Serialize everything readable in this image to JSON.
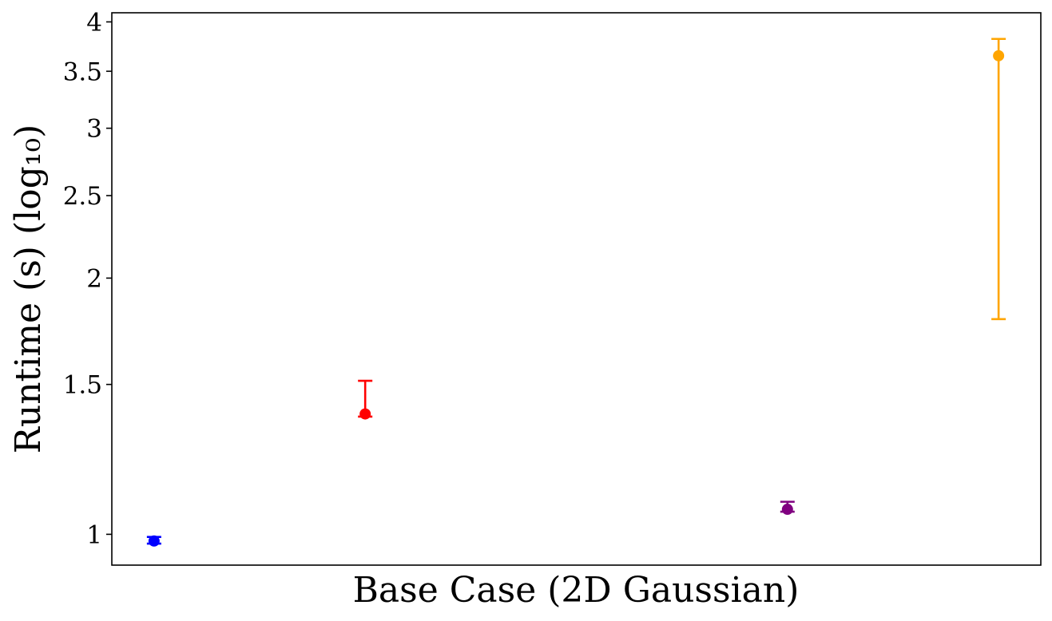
{
  "chart_data": {
    "type": "scatter",
    "xlabel": "Base Case (2D Gaussian)",
    "ylabel": "Runtime (s) (log₁₀)",
    "yscale": "log",
    "ylim": [
      0.92,
      4.1
    ],
    "xlim": [
      -0.2,
      4.2
    ],
    "grid": false,
    "yticks": [
      {
        "value": 1,
        "label": "1"
      },
      {
        "value": 1.5,
        "label": "1.5"
      },
      {
        "value": 2,
        "label": "2"
      },
      {
        "value": 2.5,
        "label": "2.5"
      },
      {
        "value": 3,
        "label": "3"
      },
      {
        "value": 3.5,
        "label": "3.5"
      },
      {
        "value": 4,
        "label": "4"
      }
    ],
    "series": [
      {
        "x": 0,
        "y": 0.982,
        "err_low": 0.975,
        "err_high": 0.993,
        "color": "#0000ff"
      },
      {
        "x": 1,
        "y": 1.385,
        "err_low": 1.375,
        "err_high": 1.515,
        "color": "#ff0000"
      },
      {
        "x": 3,
        "y": 1.07,
        "err_low": 1.063,
        "err_high": 1.092,
        "color": "#800080"
      },
      {
        "x": 4,
        "y": 3.65,
        "err_low": 1.79,
        "err_high": 3.82,
        "color": "#ffa500"
      }
    ]
  }
}
